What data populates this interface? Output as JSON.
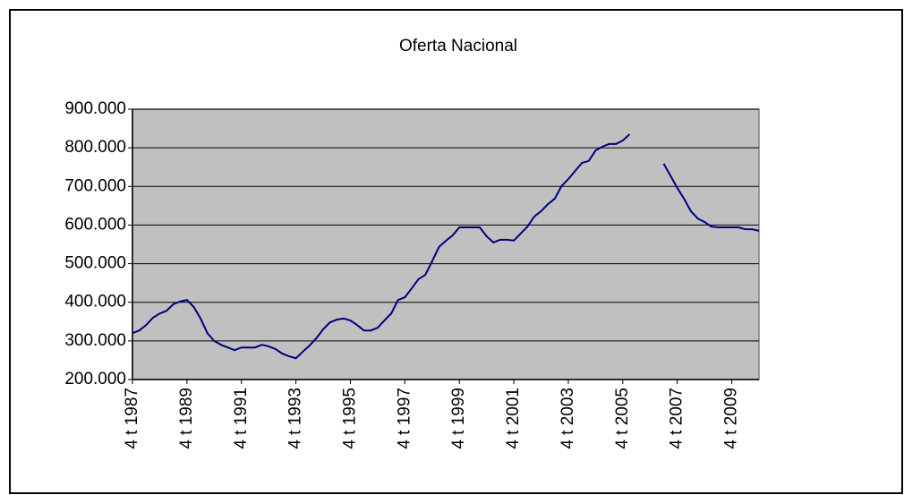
{
  "chart_data": {
    "type": "line",
    "title": "Oferta Nacional",
    "categories": [
      "4 t 1987",
      null,
      null,
      null,
      null,
      null,
      null,
      null,
      "4 t 1989",
      null,
      null,
      null,
      null,
      null,
      null,
      null,
      "4 t 1991",
      null,
      null,
      null,
      null,
      null,
      null,
      null,
      "4 t 1993",
      null,
      null,
      null,
      null,
      null,
      null,
      null,
      "4 t 1995",
      null,
      null,
      null,
      null,
      null,
      null,
      null,
      "4 t 1997",
      null,
      null,
      null,
      null,
      null,
      null,
      null,
      "4 t 1999",
      null,
      null,
      null,
      null,
      null,
      null,
      null,
      "4 t 2001",
      null,
      null,
      null,
      null,
      null,
      null,
      null,
      "4 t 2003",
      null,
      null,
      null,
      null,
      null,
      null,
      null,
      "4 t 2005",
      null,
      null,
      null,
      null,
      null,
      null,
      null,
      "4 t 2007",
      null,
      null,
      null,
      null,
      null,
      null,
      null,
      "4 t 2009",
      null,
      null,
      null,
      null
    ],
    "series": [
      {
        "color": "#000080",
        "values": [
          320000,
          327000,
          341000,
          360000,
          371000,
          378000,
          395000,
          402000,
          406000,
          388000,
          358000,
          320000,
          300000,
          290000,
          283000,
          276000,
          283000,
          283000,
          283000,
          290000,
          286000,
          279000,
          267000,
          260000,
          255000,
          272000,
          288000,
          307000,
          330000,
          348000,
          355000,
          358000,
          353000,
          341000,
          327000,
          327000,
          334000,
          353000,
          371000,
          406000,
          413000,
          436000,
          460000,
          471000,
          506000,
          543000,
          559000,
          573000,
          594000,
          594000,
          594000,
          594000,
          571000,
          555000,
          562000,
          562000,
          560000,
          578000,
          596000,
          622000,
          636000,
          654000,
          668000,
          701000,
          719000,
          740000,
          761000,
          766000,
          793000,
          803000,
          810000,
          810000,
          819000,
          835000,
          null,
          null,
          null,
          null,
          759000,
          728000,
          696000,
          668000,
          636000,
          617000,
          608000,
          596000,
          594000,
          594000,
          594000,
          594000,
          589000,
          589000,
          585000
        ]
      }
    ],
    "ylim": [
      200000,
      900000
    ],
    "yticks": [
      {
        "value": 200000,
        "label": "200.000"
      },
      {
        "value": 300000,
        "label": "300.000"
      },
      {
        "value": 400000,
        "label": "400.000"
      },
      {
        "value": 500000,
        "label": "500.000"
      },
      {
        "value": 600000,
        "label": "600.000"
      },
      {
        "value": 700000,
        "label": "700.000"
      },
      {
        "value": 800000,
        "label": "800.000"
      },
      {
        "value": 900000,
        "label": "900.000"
      }
    ],
    "grid": true
  }
}
